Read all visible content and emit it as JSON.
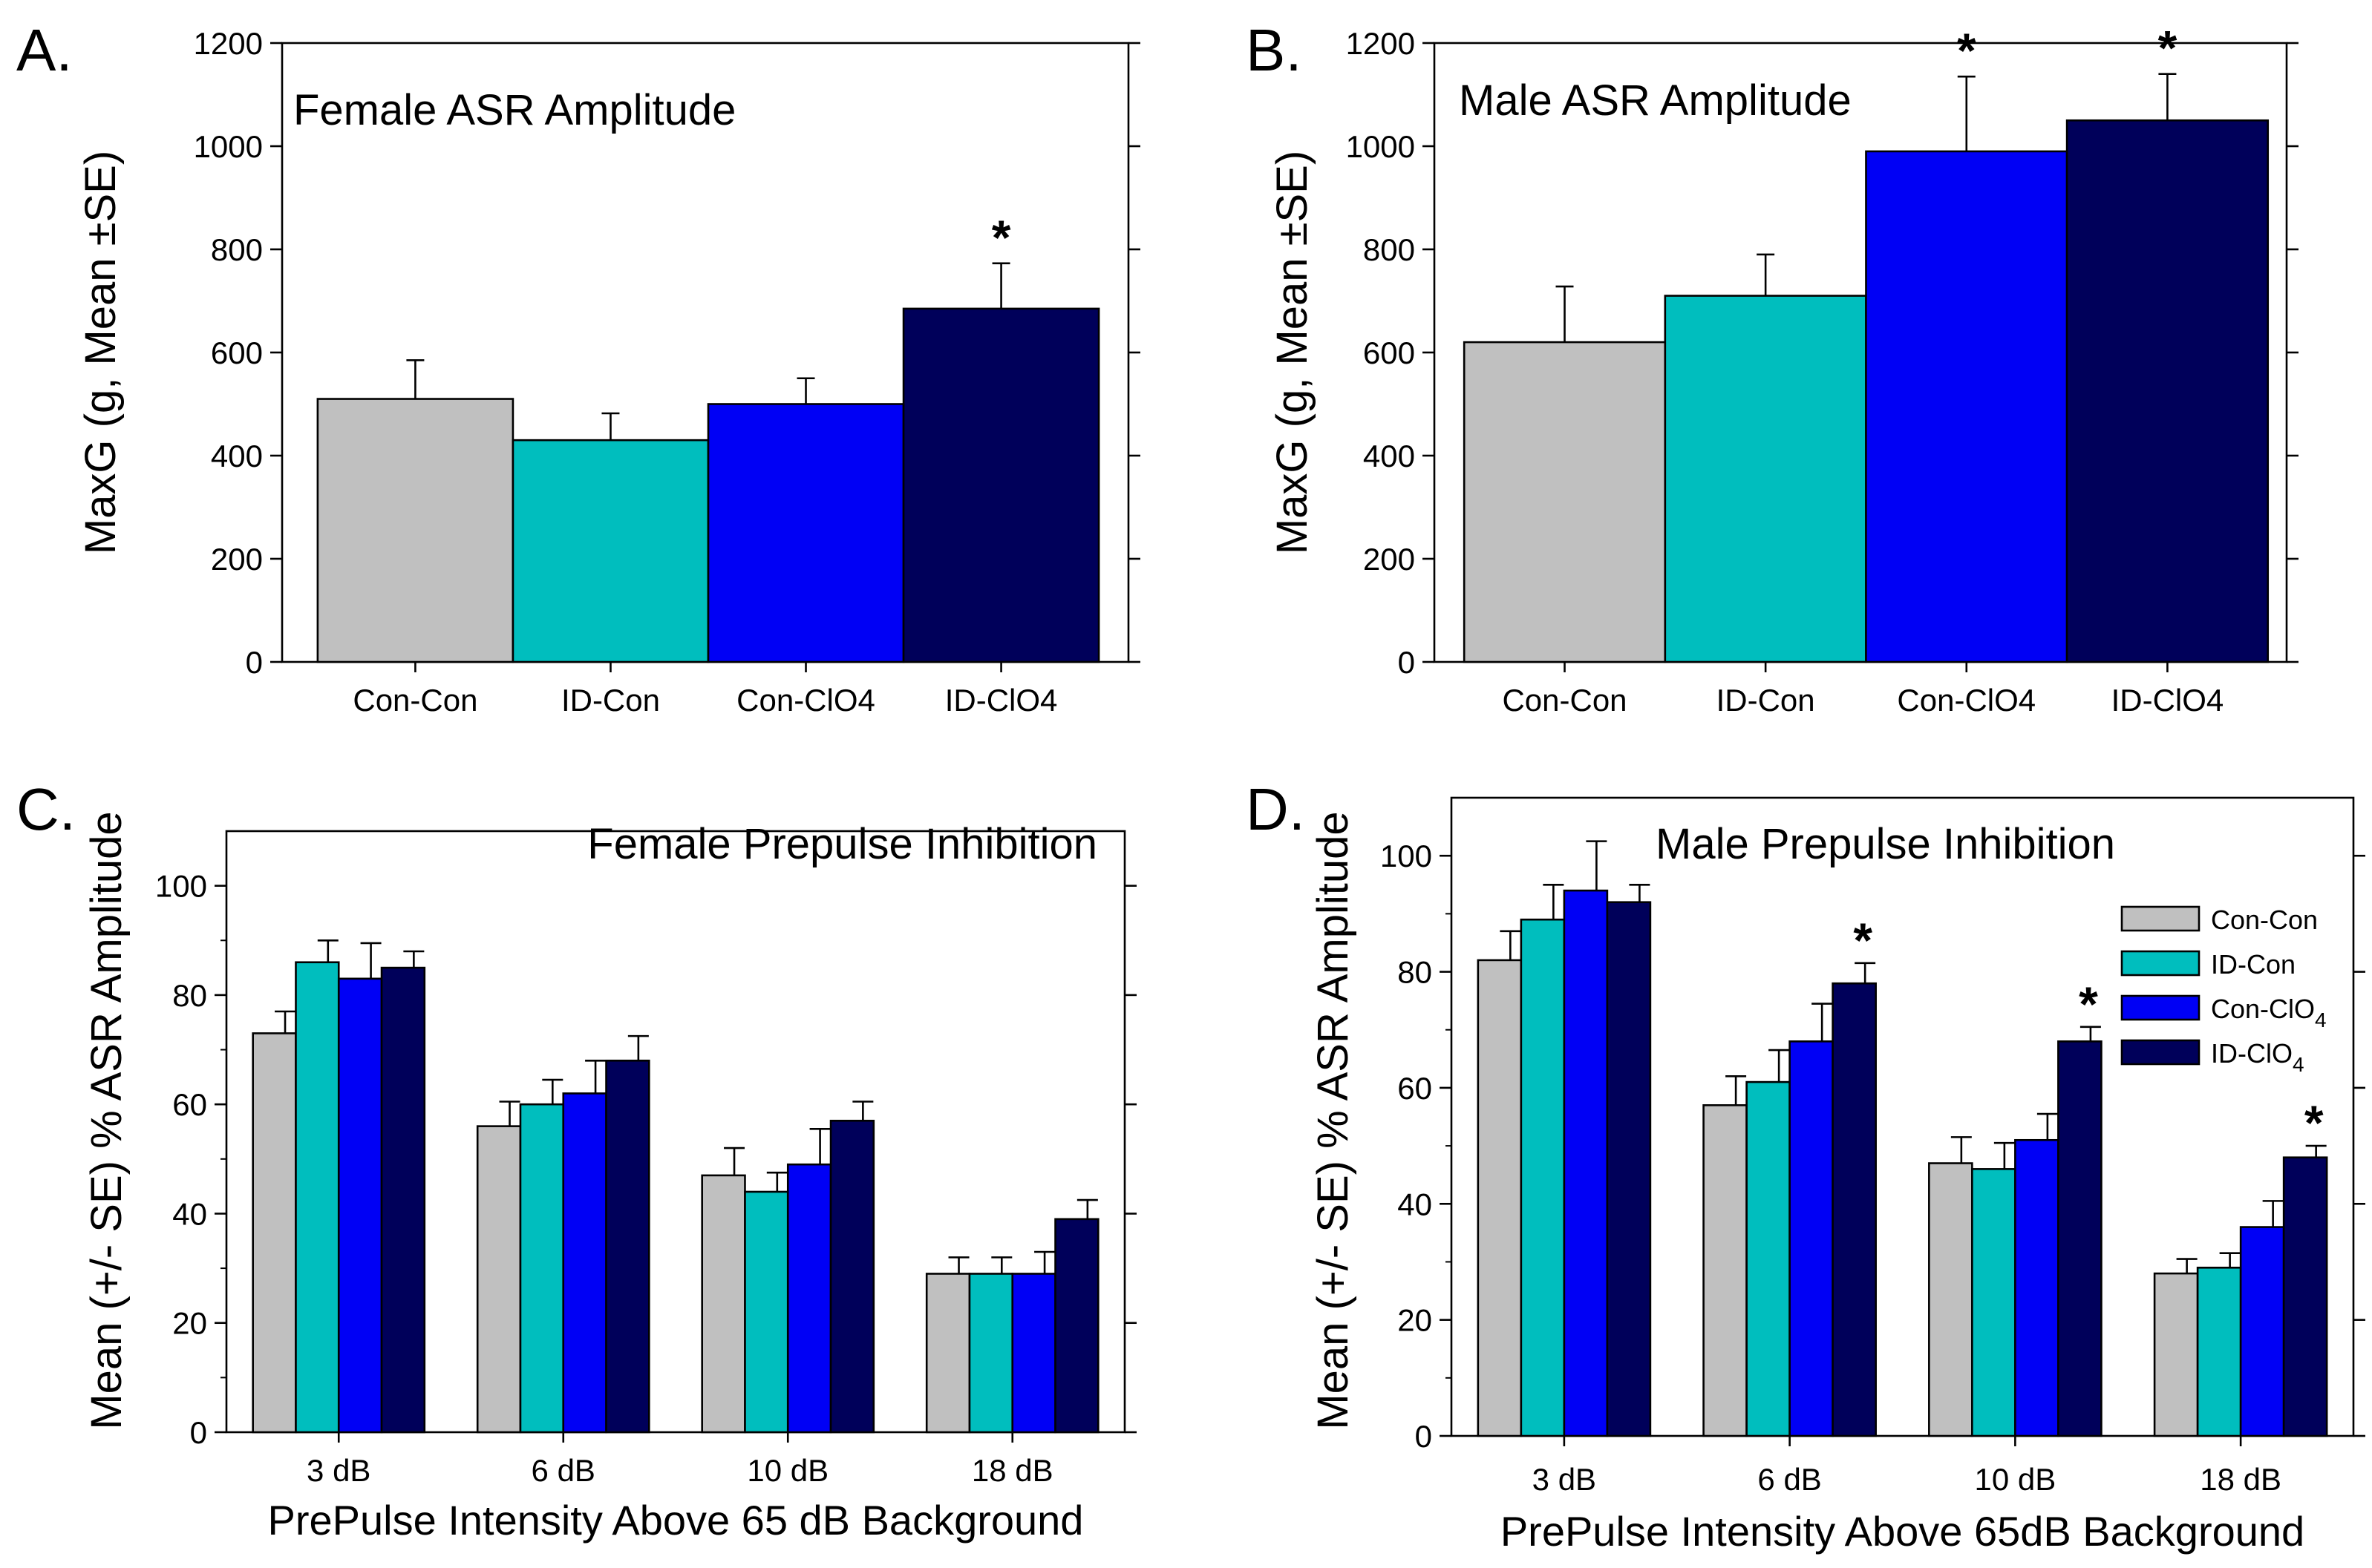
{
  "chart_data": [
    {
      "type": "bar",
      "panel": "A.",
      "title": "Female ASR Amplitude",
      "ylabel": "MaxG (g, Mean ±SE)",
      "xlabel": "",
      "ylim": [
        0,
        1200
      ],
      "yticks": [
        0,
        200,
        400,
        600,
        800,
        1000,
        1200
      ],
      "categories": [
        "Con-Con",
        "ID-Con",
        "Con-ClO4",
        "ID-ClO4"
      ],
      "values": [
        510,
        430,
        500,
        685
      ],
      "errors": [
        75,
        52,
        50,
        88
      ],
      "stars": [
        false,
        false,
        false,
        true
      ],
      "star_text": "*",
      "colors": [
        "#c0c0c0",
        "#00bebe",
        "#0000f5",
        "#00005a"
      ]
    },
    {
      "type": "bar",
      "panel": "B.",
      "title": "Male ASR Amplitude",
      "ylabel": "MaxG (g, Mean ±SE)",
      "xlabel": "",
      "ylim": [
        0,
        1200
      ],
      "yticks": [
        0,
        200,
        400,
        600,
        800,
        1000,
        1200
      ],
      "categories": [
        "Con-Con",
        "ID-Con",
        "Con-ClO4",
        "ID-ClO4"
      ],
      "values": [
        620,
        710,
        990,
        1050
      ],
      "errors": [
        108,
        80,
        145,
        90
      ],
      "stars": [
        false,
        false,
        true,
        true
      ],
      "star_text": "*",
      "colors": [
        "#c0c0c0",
        "#00bebe",
        "#0000f5",
        "#00005a"
      ]
    },
    {
      "type": "bar",
      "panel": "C.",
      "title": "Female Prepulse Inhibition",
      "ylabel": "Mean (+/- SE) % ASR Amplitude",
      "xlabel": "PrePulse Intensity Above 65 dB Background",
      "ylim": [
        0,
        110
      ],
      "yticks": [
        0,
        20,
        40,
        60,
        80,
        100
      ],
      "categories": [
        "3 dB",
        "6 dB",
        "10 dB",
        "18 dB"
      ],
      "series": [
        {
          "name": "Con-Con",
          "color": "#c0c0c0",
          "values": [
            73,
            56,
            47,
            29
          ],
          "errors": [
            4,
            4.5,
            5,
            3
          ]
        },
        {
          "name": "ID-Con",
          "color": "#00bebe",
          "values": [
            86,
            60,
            44,
            29
          ],
          "errors": [
            4,
            4.5,
            3.5,
            3
          ]
        },
        {
          "name": "Con-ClO4",
          "color": "#0000f5",
          "values": [
            83,
            62,
            49,
            29
          ],
          "errors": [
            6.5,
            6,
            6.5,
            4
          ]
        },
        {
          "name": "ID-ClO4",
          "color": "#00005a",
          "values": [
            85,
            68,
            57,
            39
          ],
          "errors": [
            3,
            4.5,
            3.5,
            3.5
          ]
        }
      ],
      "stars": [
        [
          false,
          false,
          false,
          false
        ],
        [
          false,
          false,
          false,
          false
        ],
        [
          false,
          false,
          false,
          false
        ],
        [
          false,
          false,
          false,
          false
        ]
      ],
      "star_text": "*"
    },
    {
      "type": "bar",
      "panel": "D.",
      "title": "Male Prepulse Inhibition",
      "ylabel": "Mean (+/- SE) %  ASR Amplitude",
      "xlabel": "PrePulse Intensity Above 65dB Background",
      "ylim": [
        0,
        110
      ],
      "yticks": [
        0,
        20,
        40,
        60,
        80,
        100
      ],
      "categories": [
        "3 dB",
        "6 dB",
        "10 dB",
        "18 dB"
      ],
      "series": [
        {
          "name": "Con-Con",
          "color": "#c0c0c0",
          "values": [
            82,
            57,
            47,
            28
          ],
          "errors": [
            5,
            5,
            4.5,
            2.5
          ]
        },
        {
          "name": "ID-Con",
          "color": "#00bebe",
          "values": [
            89,
            61,
            46,
            29
          ],
          "errors": [
            6,
            5.5,
            4.5,
            2.5
          ]
        },
        {
          "name": "Con-ClO4",
          "color": "#0000f5",
          "values": [
            94,
            68,
            51,
            36
          ],
          "errors": [
            8.5,
            6.5,
            4.5,
            4.5
          ]
        },
        {
          "name": "ID-ClO4",
          "color": "#00005a",
          "values": [
            92,
            78,
            68,
            48
          ],
          "errors": [
            3,
            3.5,
            2.5,
            2
          ]
        }
      ],
      "stars": [
        [
          false,
          false,
          false,
          false
        ],
        [
          false,
          false,
          false,
          false
        ],
        [
          false,
          false,
          false,
          false
        ],
        [
          false,
          true,
          true,
          true
        ]
      ],
      "star_text": "*",
      "legend": {
        "position": "top-right",
        "entries": [
          {
            "base": "Con-Con",
            "sub": ""
          },
          {
            "base": "ID-Con",
            "sub": ""
          },
          {
            "base": "Con-ClO",
            "sub": "4"
          },
          {
            "base": "ID-ClO",
            "sub": "4"
          }
        ]
      }
    }
  ]
}
